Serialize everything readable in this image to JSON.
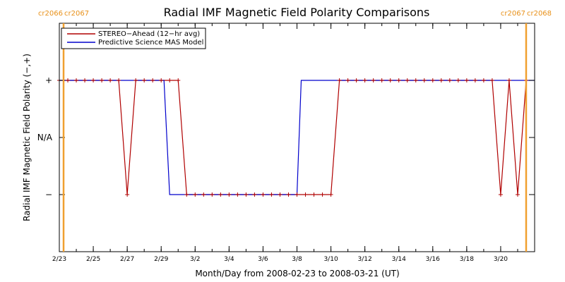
{
  "chart_data": {
    "type": "line",
    "title": "Radial IMF Magnetic Field Polarity Comparisons",
    "xlabel": "Month/Day from 2008-02-23 to 2008-03-21 (UT)",
    "ylabel": "Radial IMF Magnetic Field Polarity (−,+)",
    "xlim": [
      "2008-02-23",
      "2008-03-22"
    ],
    "ylim": [
      -2,
      2
    ],
    "x_ticks": [
      {
        "date": "2008-02-23",
        "label": "2/23"
      },
      {
        "date": "2008-02-25",
        "label": "2/25"
      },
      {
        "date": "2008-02-27",
        "label": "2/27"
      },
      {
        "date": "2008-02-29",
        "label": "2/29"
      },
      {
        "date": "2008-03-02",
        "label": "3/2"
      },
      {
        "date": "2008-03-04",
        "label": "3/4"
      },
      {
        "date": "2008-03-06",
        "label": "3/6"
      },
      {
        "date": "2008-03-08",
        "label": "3/8"
      },
      {
        "date": "2008-03-10",
        "label": "3/10"
      },
      {
        "date": "2008-03-12",
        "label": "3/12"
      },
      {
        "date": "2008-03-14",
        "label": "3/14"
      },
      {
        "date": "2008-03-16",
        "label": "3/16"
      },
      {
        "date": "2008-03-18",
        "label": "3/18"
      },
      {
        "date": "2008-03-20",
        "label": "3/20"
      }
    ],
    "y_ticks": [
      {
        "value": 1,
        "label": "+"
      },
      {
        "value": 0,
        "label": "N/A"
      },
      {
        "value": -1,
        "label": "−"
      }
    ],
    "grid": false,
    "legend_position": "top-left",
    "carrington_rotations": [
      {
        "date": "2008-02-23 06:00",
        "left_label": "cr2066",
        "right_label": "cr2067"
      },
      {
        "date": "2008-03-21 12:00",
        "left_label": "cr2067",
        "right_label": "cr2068"
      }
    ],
    "series": [
      {
        "name": "STEREO−Ahead (12−hr avg)",
        "color": "#b00000",
        "marker": "plus",
        "x": [
          "2008-02-23",
          "2008-02-23 12:00",
          "2008-02-24",
          "2008-02-24 12:00",
          "2008-02-25",
          "2008-02-25 12:00",
          "2008-02-26",
          "2008-02-26 12:00",
          "2008-02-27",
          "2008-02-27 12:00",
          "2008-02-28",
          "2008-02-28 12:00",
          "2008-02-29",
          "2008-02-29 12:00",
          "2008-03-01",
          "2008-03-01 12:00",
          "2008-03-02",
          "2008-03-02 12:00",
          "2008-03-03",
          "2008-03-03 12:00",
          "2008-03-04",
          "2008-03-04 12:00",
          "2008-03-05",
          "2008-03-05 12:00",
          "2008-03-06",
          "2008-03-06 12:00",
          "2008-03-07",
          "2008-03-07 12:00",
          "2008-03-08",
          "2008-03-08 12:00",
          "2008-03-09",
          "2008-03-09 12:00",
          "2008-03-10",
          "2008-03-10 12:00",
          "2008-03-11",
          "2008-03-11 12:00",
          "2008-03-12",
          "2008-03-12 12:00",
          "2008-03-13",
          "2008-03-13 12:00",
          "2008-03-14",
          "2008-03-14 12:00",
          "2008-03-15",
          "2008-03-15 12:00",
          "2008-03-16",
          "2008-03-16 12:00",
          "2008-03-17",
          "2008-03-17 12:00",
          "2008-03-18",
          "2008-03-18 12:00",
          "2008-03-19",
          "2008-03-19 12:00",
          "2008-03-20",
          "2008-03-20 12:00",
          "2008-03-21",
          "2008-03-21 12:00"
        ],
        "values": [
          1,
          1,
          1,
          1,
          1,
          1,
          1,
          1,
          -1,
          1,
          1,
          1,
          1,
          1,
          1,
          -1,
          -1,
          -1,
          -1,
          -1,
          -1,
          -1,
          -1,
          -1,
          -1,
          -1,
          -1,
          -1,
          -1,
          -1,
          -1,
          -1,
          -1,
          1,
          1,
          1,
          1,
          1,
          1,
          1,
          1,
          1,
          1,
          1,
          1,
          1,
          1,
          1,
          1,
          1,
          1,
          1,
          -1,
          1,
          -1,
          1
        ]
      },
      {
        "name": "Predictive Science MAS Model",
        "color": "#0000cc",
        "marker": "none",
        "x": [
          "2008-02-23",
          "2008-02-29 04:00",
          "2008-02-29 12:00",
          "2008-03-08 00:00",
          "2008-03-08 06:00",
          "2008-03-22"
        ],
        "values": [
          1,
          1,
          -1,
          -1,
          1,
          1
        ]
      }
    ]
  }
}
